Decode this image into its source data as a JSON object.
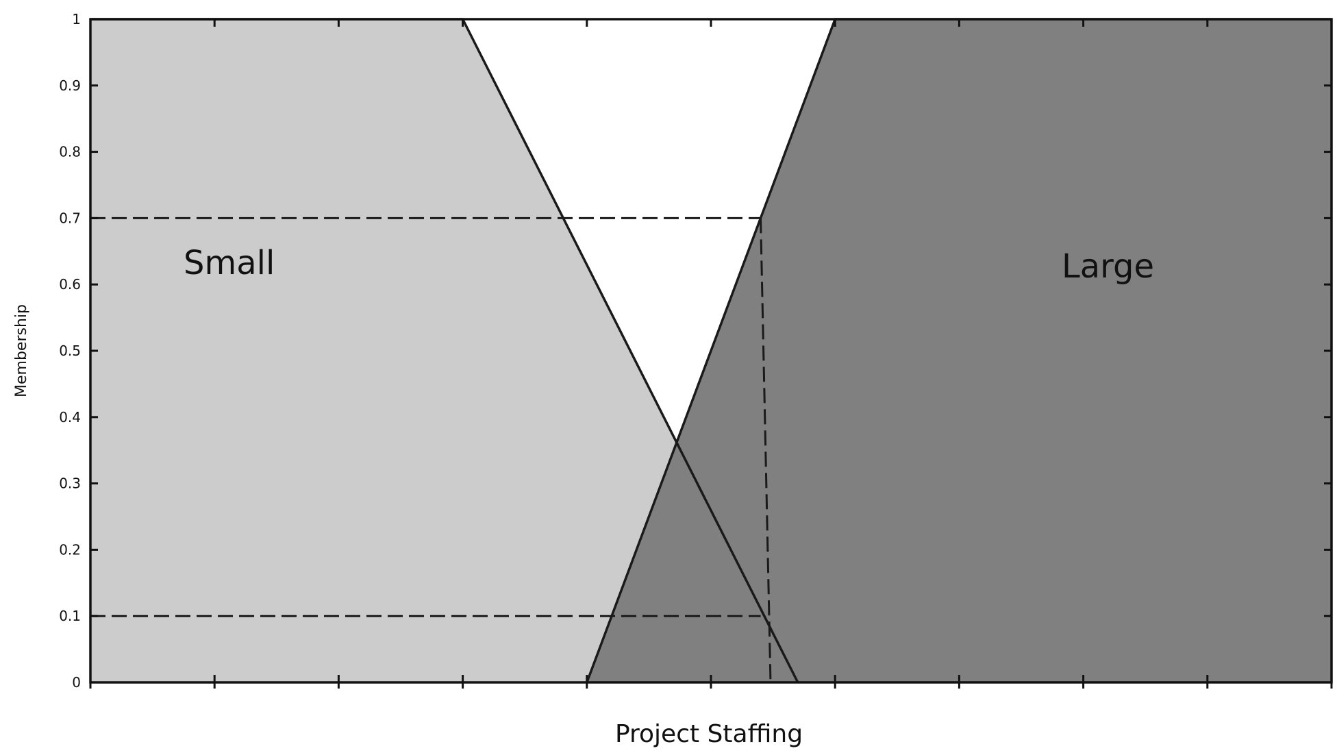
{
  "chart_data": {
    "type": "area",
    "title": "",
    "xlabel": "Project Staffing",
    "ylabel": "Membership",
    "xlim": [
      0,
      10
    ],
    "ylim": [
      0,
      1
    ],
    "y_ticks": [
      "0",
      "0.1",
      "0.2",
      "0.3",
      "0.4",
      "0.5",
      "0.6",
      "0.7",
      "0.8",
      "0.9",
      "1"
    ],
    "x_tick_count": 11,
    "grid": false,
    "series": [
      {
        "name": "Small",
        "fill": "#cccccc",
        "x": [
          0,
          3,
          5.7
        ],
        "y": [
          1,
          1,
          0
        ]
      },
      {
        "name": "Large",
        "fill": "#808080",
        "x": [
          4,
          6,
          10
        ],
        "y": [
          0,
          1,
          1
        ]
      }
    ],
    "annotations": [
      {
        "kind": "dashed",
        "x": [
          0,
          3.8,
          5.4
        ],
        "y": [
          0.7,
          0.7,
          0.7
        ]
      },
      {
        "kind": "dashed",
        "x": [
          0,
          5.4
        ],
        "y": [
          0.1,
          0.1
        ]
      },
      {
        "kind": "dashed",
        "x": [
          5.4,
          5.48
        ],
        "y": [
          0.7,
          0
        ]
      }
    ],
    "colors": {
      "small_fill": "#cccccc",
      "large_fill": "#808080",
      "line": "#1a1a1a",
      "dashed": "#1a1a1a"
    }
  }
}
